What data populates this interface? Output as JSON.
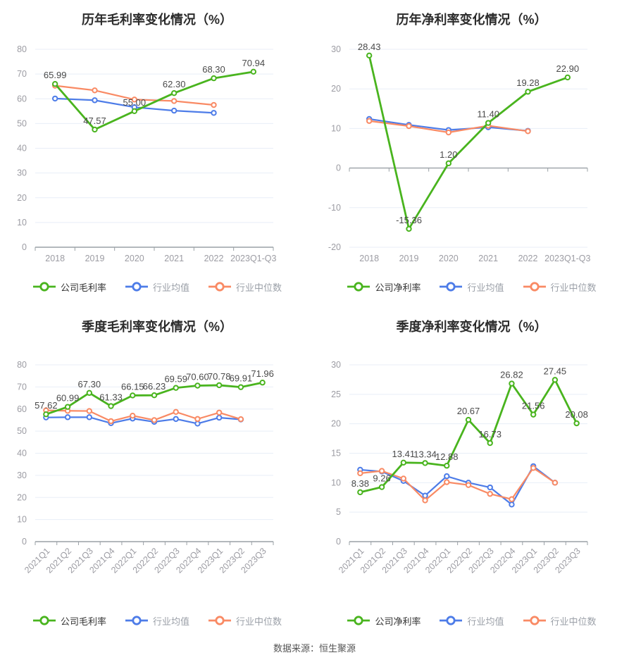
{
  "page": {
    "source_note": "数据来源：恒生聚源"
  },
  "colors": {
    "company": "#49b41e",
    "industry_avg": "#4d7ce8",
    "industry_median": "#f98a64",
    "grid": "#e8eef7",
    "axis": "#9aa0a6",
    "tick_label": "#9c9ca3",
    "data_label": "#4a4a4a",
    "title": "#2b2b2b"
  },
  "chart_data": [
    {
      "type": "line",
      "title": "历年毛利率变化情况（%）",
      "categories": [
        "2018",
        "2019",
        "2020",
        "2021",
        "2022",
        "2023Q1-Q3"
      ],
      "ylim": [
        0,
        80
      ],
      "yticks": [
        0,
        10,
        20,
        30,
        40,
        50,
        60,
        70,
        80
      ],
      "axis_at": 0,
      "rotate_x_labels": false,
      "legend": [
        "公司毛利率",
        "行业均值",
        "行业中位数"
      ],
      "legend_position": "bottom",
      "grid": true,
      "series": [
        {
          "name": "公司毛利率",
          "color_key": "company",
          "values": [
            65.99,
            47.57,
            55.0,
            62.3,
            68.3,
            70.94
          ],
          "labels": [
            "65.99",
            "47.57",
            "55.00",
            "62.30",
            "68.30",
            "70.94"
          ]
        },
        {
          "name": "行业均值",
          "color_key": "industry_avg",
          "values": [
            60.1,
            59.4,
            56.6,
            55.2,
            54.3
          ]
        },
        {
          "name": "行业中位数",
          "color_key": "industry_median",
          "values": [
            65.3,
            63.4,
            59.7,
            59.1,
            57.5
          ]
        }
      ]
    },
    {
      "type": "line",
      "title": "历年净利率变化情况（%）",
      "categories": [
        "2018",
        "2019",
        "2020",
        "2021",
        "2022",
        "2023Q1-Q3"
      ],
      "ylim": [
        -20,
        30
      ],
      "yticks": [
        -20,
        -10,
        0,
        10,
        20,
        30
      ],
      "axis_at": 0,
      "rotate_x_labels": false,
      "legend": [
        "公司净利率",
        "行业均值",
        "行业中位数"
      ],
      "legend_position": "bottom",
      "grid": true,
      "series": [
        {
          "name": "公司净利率",
          "color_key": "company",
          "values": [
            28.43,
            -15.36,
            1.2,
            11.4,
            19.28,
            22.9
          ],
          "labels": [
            "28.43",
            "-15.36",
            "1.20",
            "11.40",
            "19.28",
            "22.90"
          ]
        },
        {
          "name": "行业均值",
          "color_key": "industry_avg",
          "values": [
            12.4,
            10.9,
            9.6,
            10.3,
            9.4
          ]
        },
        {
          "name": "行业中位数",
          "color_key": "industry_median",
          "values": [
            11.9,
            10.6,
            9.0,
            10.7,
            9.3
          ]
        }
      ]
    },
    {
      "type": "line",
      "title": "季度毛利率变化情况（%）",
      "categories": [
        "2021Q1",
        "2021Q2",
        "2021Q3",
        "2021Q4",
        "2022Q1",
        "2022Q2",
        "2022Q3",
        "2022Q4",
        "2023Q1",
        "2023Q2",
        "2023Q3"
      ],
      "ylim": [
        0,
        80
      ],
      "yticks": [
        0,
        10,
        20,
        30,
        40,
        50,
        60,
        70,
        80
      ],
      "axis_at": 0,
      "rotate_x_labels": true,
      "legend": [
        "公司毛利率",
        "行业均值",
        "行业中位数"
      ],
      "legend_position": "bottom",
      "grid": true,
      "series": [
        {
          "name": "公司毛利率",
          "color_key": "company",
          "values": [
            57.62,
            60.99,
            67.3,
            61.33,
            66.15,
            66.23,
            69.59,
            70.6,
            70.78,
            69.91,
            71.96
          ],
          "labels": [
            "57.62",
            "60.99",
            "67.30",
            "61.33",
            "66.15",
            "66.23",
            "69.59",
            "70.60",
            "70.78",
            "69.91",
            "71.96"
          ]
        },
        {
          "name": "行业均值",
          "color_key": "industry_avg",
          "values": [
            56.2,
            56.3,
            56.3,
            53.6,
            55.7,
            54.2,
            55.5,
            53.4,
            56.1,
            55.3
          ]
        },
        {
          "name": "行业中位数",
          "color_key": "industry_median",
          "values": [
            59.4,
            59.2,
            59.1,
            54.5,
            57.0,
            55.0,
            58.7,
            55.5,
            58.4,
            55.4
          ]
        }
      ]
    },
    {
      "type": "line",
      "title": "季度净利率变化情况（%）",
      "categories": [
        "2021Q1",
        "2021Q2",
        "2021Q3",
        "2021Q4",
        "2022Q1",
        "2022Q2",
        "2022Q3",
        "2022Q4",
        "2023Q1",
        "2023Q2",
        "2023Q3"
      ],
      "ylim": [
        0,
        30
      ],
      "yticks": [
        0,
        5,
        10,
        15,
        20,
        25,
        30
      ],
      "axis_at": 0,
      "rotate_x_labels": true,
      "legend": [
        "公司净利率",
        "行业均值",
        "行业中位数"
      ],
      "legend_position": "bottom",
      "grid": true,
      "series": [
        {
          "name": "公司净利率",
          "color_key": "company",
          "values": [
            8.38,
            9.26,
            13.41,
            13.34,
            12.88,
            20.67,
            16.73,
            26.82,
            21.56,
            27.45,
            20.08
          ],
          "labels": [
            "8.38",
            "9.26",
            "13.41",
            "13.34",
            "12.88",
            "20.67",
            "16.73",
            "26.82",
            "21.56",
            "27.45",
            "20.08"
          ]
        },
        {
          "name": "行业均值",
          "color_key": "industry_avg",
          "values": [
            12.2,
            11.9,
            10.3,
            7.8,
            11.1,
            10.0,
            9.2,
            6.3,
            12.8,
            10.0
          ]
        },
        {
          "name": "行业中位数",
          "color_key": "industry_median",
          "values": [
            11.6,
            12.0,
            10.7,
            7.0,
            10.1,
            9.6,
            8.1,
            7.2,
            12.5,
            10.0
          ]
        }
      ]
    }
  ]
}
